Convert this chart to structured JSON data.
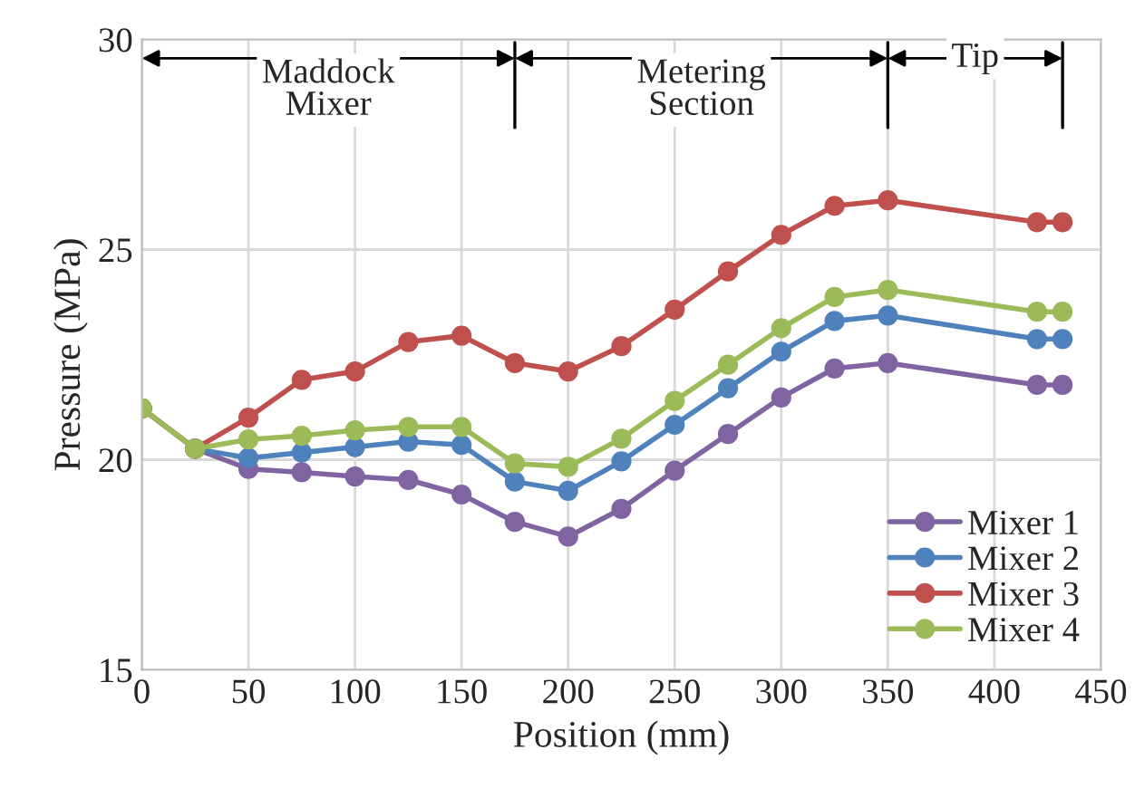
{
  "chart_data": {
    "type": "line",
    "xlabel": "Position (mm)",
    "ylabel": "Pressure (MPa)",
    "x": [
      0,
      25,
      50,
      75,
      100,
      125,
      150,
      175,
      200,
      225,
      250,
      275,
      300,
      325,
      350,
      420,
      432
    ],
    "series": [
      {
        "name": "Mixer 1",
        "color": "#8064a2",
        "values": [
          21.22,
          20.26,
          19.78,
          19.7,
          19.6,
          19.52,
          19.17,
          18.52,
          18.17,
          18.83,
          19.74,
          20.61,
          21.48,
          22.17,
          22.3,
          21.78,
          21.78
        ]
      },
      {
        "name": "Mixer 2",
        "color": "#4f81bd",
        "values": [
          21.22,
          20.26,
          20.04,
          20.17,
          20.3,
          20.43,
          20.35,
          19.48,
          19.26,
          19.96,
          20.83,
          21.7,
          22.57,
          23.3,
          23.43,
          22.87,
          22.87
        ]
      },
      {
        "name": "Mixer 3",
        "color": "#c0504d",
        "values": [
          21.22,
          20.26,
          21.0,
          21.9,
          22.1,
          22.8,
          22.95,
          22.3,
          22.1,
          22.7,
          23.57,
          24.48,
          25.35,
          26.04,
          26.17,
          25.65,
          25.65
        ]
      },
      {
        "name": "Mixer 4",
        "color": "#9bbb59",
        "values": [
          21.22,
          20.26,
          20.48,
          20.57,
          20.7,
          20.78,
          20.78,
          19.91,
          19.83,
          20.5,
          21.4,
          22.26,
          23.13,
          23.87,
          24.04,
          23.52,
          23.52
        ]
      }
    ],
    "ref_lines": [
      {
        "axis": "x",
        "value": 175
      },
      {
        "axis": "x",
        "value": 350
      },
      {
        "axis": "x",
        "value": 432
      }
    ],
    "annotations": [
      "Maddock\nMixer",
      "Metering\nSection",
      "Tip"
    ],
    "xlim": [
      0,
      450
    ],
    "xticks": [
      0,
      50,
      100,
      150,
      200,
      250,
      300,
      350,
      400,
      450
    ],
    "ylim": [
      15,
      30
    ],
    "yticks": [
      15,
      20,
      25,
      30
    ],
    "grid": true,
    "legend": "bottom right",
    "marker": "circle",
    "line_style": "solid"
  }
}
